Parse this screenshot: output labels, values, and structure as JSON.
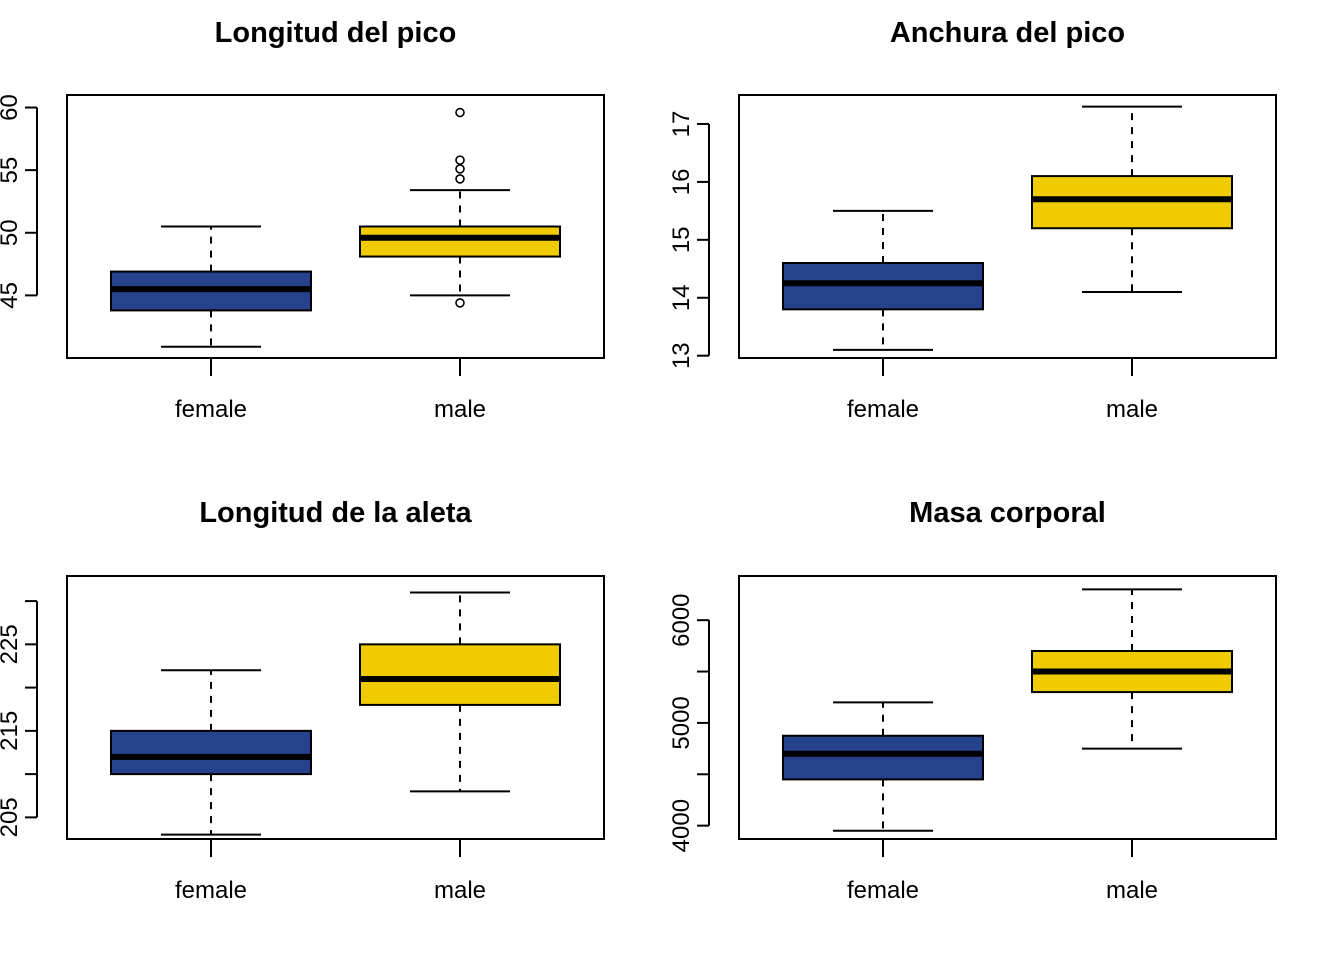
{
  "colors": {
    "female": "#27428c",
    "male": "#efcb00",
    "line": "#000000"
  },
  "chart_data": [
    {
      "type": "box",
      "title": "Longitud del pico",
      "categories": [
        "female",
        "male"
      ],
      "ylim": [
        40,
        61
      ],
      "y_ticks": [
        45,
        50,
        55,
        60
      ],
      "y_tick_labels": [
        "45",
        "50",
        "55",
        "60"
      ],
      "boxes": [
        {
          "name": "female",
          "min": 40.9,
          "q1": 43.8,
          "median": 45.5,
          "q3": 46.9,
          "max": 50.5,
          "outliers": []
        },
        {
          "name": "male",
          "min": 45.0,
          "q1": 48.1,
          "median": 49.6,
          "q3": 50.5,
          "max": 53.4,
          "outliers": [
            59.6,
            55.8,
            55.1,
            54.3,
            44.4
          ]
        }
      ]
    },
    {
      "type": "box",
      "title": "Anchura del pico",
      "categories": [
        "female",
        "male"
      ],
      "ylim": [
        12.96,
        17.5
      ],
      "y_ticks": [
        13,
        14,
        15,
        16,
        17
      ],
      "y_tick_labels": [
        "13",
        "14",
        "15",
        "16",
        "17"
      ],
      "boxes": [
        {
          "name": "female",
          "min": 13.1,
          "q1": 13.8,
          "median": 14.25,
          "q3": 14.6,
          "max": 15.5,
          "outliers": []
        },
        {
          "name": "male",
          "min": 14.1,
          "q1": 15.2,
          "median": 15.7,
          "q3": 16.1,
          "max": 17.3,
          "outliers": []
        }
      ]
    },
    {
      "type": "box",
      "title": "Longitud de la aleta",
      "categories": [
        "female",
        "male"
      ],
      "ylim": [
        202.5,
        232.9
      ],
      "y_ticks": [
        205,
        210,
        215,
        220,
        225,
        230
      ],
      "y_tick_labels": [
        "205",
        "",
        "215",
        "",
        "225",
        ""
      ],
      "boxes": [
        {
          "name": "female",
          "min": 203,
          "q1": 210,
          "median": 212,
          "q3": 215,
          "max": 222,
          "outliers": []
        },
        {
          "name": "male",
          "min": 208,
          "q1": 218,
          "median": 221,
          "q3": 225,
          "max": 231,
          "outliers": []
        }
      ]
    },
    {
      "type": "box",
      "title": "Masa corporal",
      "categories": [
        "female",
        "male"
      ],
      "ylim": [
        3870,
        6430
      ],
      "y_ticks": [
        4000,
        4500,
        5000,
        5500,
        6000
      ],
      "y_tick_labels": [
        "4000",
        "",
        "5000",
        "",
        "6000"
      ],
      "boxes": [
        {
          "name": "female",
          "min": 3950,
          "q1": 4450,
          "median": 4700,
          "q3": 4875,
          "max": 5200,
          "outliers": []
        },
        {
          "name": "male",
          "min": 4750,
          "q1": 5300,
          "median": 5500,
          "q3": 5700,
          "max": 6300,
          "outliers": []
        }
      ]
    }
  ]
}
